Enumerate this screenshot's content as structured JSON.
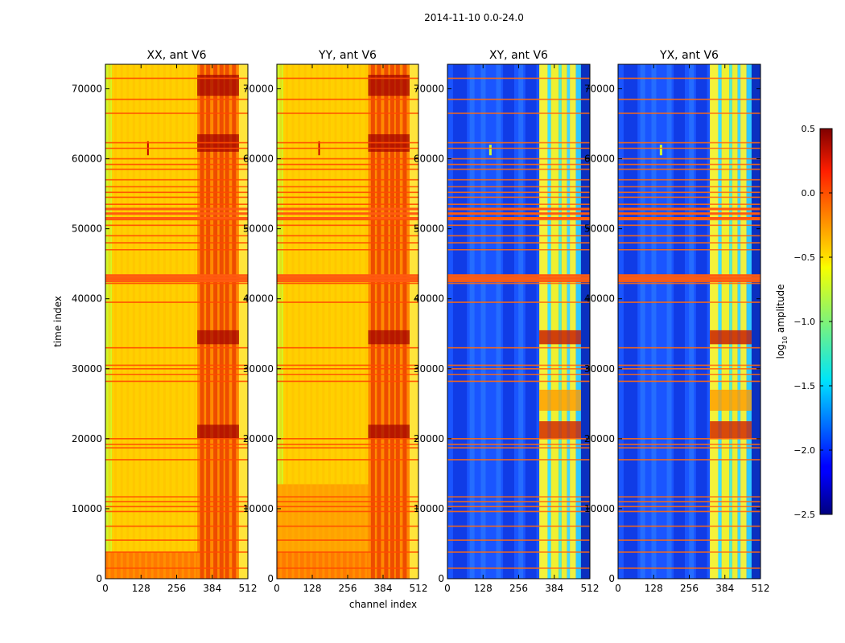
{
  "suptitle": "2014-11-10 0.0-24.0",
  "chart_data": {
    "type": "heatmap",
    "title": "2014-11-10 0.0-24.0",
    "xlabel": "channel index",
    "ylabel": "time index",
    "xlim": [
      0,
      512
    ],
    "ylim": [
      0,
      73500
    ],
    "xticks": [
      0,
      128,
      256,
      384,
      512
    ],
    "yticks": [
      0,
      10000,
      20000,
      30000,
      40000,
      50000,
      60000,
      70000
    ],
    "panels": [
      {
        "name": "XX, ant V6",
        "type": "autocorr"
      },
      {
        "name": "YY, ant V6",
        "type": "autocorr"
      },
      {
        "name": "XY, ant V6",
        "type": "crosscorr"
      },
      {
        "name": "YX, ant V6",
        "type": "crosscorr"
      }
    ],
    "colorbar": {
      "label": "log10 amplitude",
      "label_base": "log",
      "label_sub": "10",
      "label_rest": " amplitude",
      "range": [
        -2.5,
        0.5
      ],
      "ticks": [
        -2.5,
        -2.0,
        -1.5,
        -1.0,
        -0.5,
        0.0,
        0.5
      ],
      "tick_labels": [
        "−2.5",
        "−2.0",
        "−1.5",
        "−1.0",
        "−0.5",
        "0.0",
        "0.5"
      ],
      "colormap": "jet"
    },
    "flagged_times": [
      1500,
      3800,
      5500,
      7500,
      9600,
      10300,
      11000,
      11700,
      17000,
      18700,
      19200,
      20000,
      28200,
      29200,
      30000,
      30500,
      33000,
      39500,
      42200,
      42800,
      43200,
      47000,
      48000,
      49000,
      50500,
      51300,
      52200,
      53500,
      54500,
      55200,
      56000,
      57000,
      58500,
      59200,
      60000,
      61500,
      62300,
      66500,
      68500,
      71500
    ],
    "autocorr_band": {
      "channels": [
        330,
        480
      ]
    },
    "crosscorr_band": {
      "channels": [
        320,
        480
      ]
    }
  }
}
